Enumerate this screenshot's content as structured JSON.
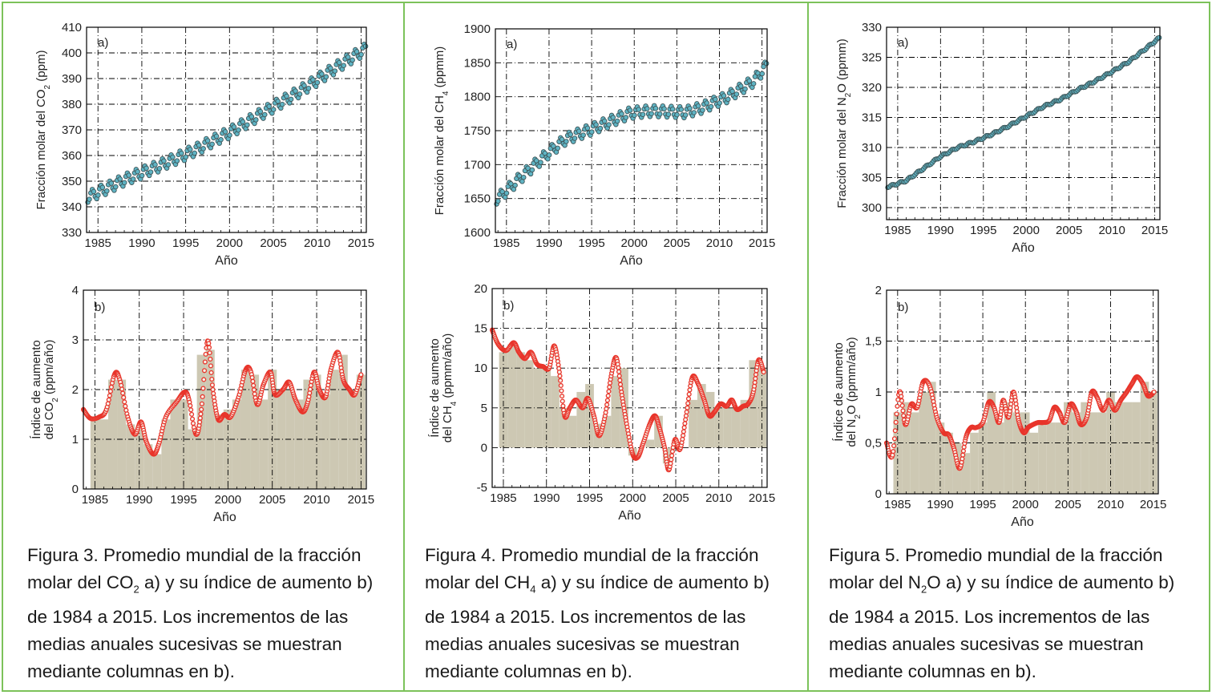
{
  "panels": [
    {
      "caption": {
        "prefix": "Figura 3. Promedio mundial de la fracción molar del CO",
        "sub": "2",
        "suffix": " a) y su índice de aumento b) de 1984 a 2015. Los incrementos de las medias anuales sucesivas se muestran mediante columnas en b)."
      },
      "chart_a": {
        "tag": "a)",
        "ylabel_pre": "Fracción molar del CO",
        "ylabel_sub": "2",
        "ylabel_post": " (ppm)",
        "xlabel": "Año"
      },
      "chart_b": {
        "tag": "b)",
        "ylabel1": "Índice de aumento",
        "ylabel2_pre": "del CO",
        "ylabel2_sub": "2",
        "ylabel2_post": " (ppm/año)",
        "xlabel": "Año"
      }
    },
    {
      "caption": {
        "prefix": "Figura 4. Promedio mundial de la fracción molar del CH",
        "sub": "4",
        "suffix": " a) y su índice de aumento b) de 1984 a 2015. Los incrementos de las medias anuales sucesivas se muestran mediante columnas en b)."
      },
      "chart_a": {
        "tag": "a)",
        "ylabel_pre": "Fracción molar del CH",
        "ylabel_sub": "4",
        "ylabel_post": " (ppmm)",
        "xlabel": "Año"
      },
      "chart_b": {
        "tag": "b)",
        "ylabel1": "Índice de aumento",
        "ylabel2_pre": "del CH",
        "ylabel2_sub": "4",
        "ylabel2_post": " (ppmm/año)",
        "xlabel": "Año"
      }
    },
    {
      "caption": {
        "prefix": "Figura 5. Promedio mundial de la fracción molar del N",
        "sub": "2",
        "suffix": "O a) y su índice de aumento b) de 1984 a 2015. Los incrementos de las medias anuales sucesivas se muestran mediante columnas en b)."
      },
      "chart_a": {
        "tag": "a)",
        "ylabel_pre": "Fracción molar del N",
        "ylabel_sub": "2",
        "ylabel_post": "O (ppmm)",
        "xlabel": "Año"
      },
      "chart_b": {
        "tag": "b)",
        "ylabel1": "Índice de aumento",
        "ylabel2_pre": "del N",
        "ylabel2_sub": "2",
        "ylabel2_post": "O (ppmm/año)",
        "xlabel": "Año"
      }
    }
  ],
  "colors": {
    "frame": "#7cc25a",
    "teal": "#5fb4c4",
    "red": "#e8352b",
    "bars": "#cdc8b3",
    "grid": "#000000"
  },
  "chart_data": [
    {
      "type": "scatter",
      "gas": "CO2",
      "xlim": [
        1983.7,
        2015.6
      ],
      "ylim": [
        330,
        410
      ],
      "xticks": [
        1985,
        1990,
        1995,
        2000,
        2005,
        2010,
        2015
      ],
      "xtick_labels": [
        "1985",
        "1990",
        "1995",
        "2000",
        "2005",
        "2010",
        "2015"
      ],
      "yticks": [
        330,
        340,
        350,
        360,
        370,
        380,
        390,
        400,
        410
      ],
      "ytick_labels": [
        "330",
        "340",
        "350",
        "360",
        "370",
        "380",
        "390",
        "400",
        "410"
      ],
      "trend_x": [
        1984,
        1988,
        1992,
        1996,
        2000,
        2004,
        2008,
        2012,
        2015.5
      ],
      "trend_y": [
        344,
        350.5,
        356,
        362,
        369,
        377,
        385,
        394,
        401.5
      ],
      "seasonal_amplitude": 2.2
    },
    {
      "type": "bar_line",
      "gas": "CO2",
      "xlim": [
        1983.7,
        2015.6
      ],
      "ylim": [
        0,
        4
      ],
      "xticks": [
        1985,
        1990,
        1995,
        2000,
        2005,
        2010,
        2015
      ],
      "xtick_labels": [
        "1985",
        "1990",
        "1995",
        "2000",
        "2005",
        "2010",
        "2015"
      ],
      "yticks": [
        0,
        1,
        2,
        3,
        4
      ],
      "ytick_labels": [
        "0",
        "1",
        "2",
        "3",
        "4"
      ],
      "bar_years": [
        1985,
        1986,
        1987,
        1988,
        1989,
        1990,
        1991,
        1992,
        1993,
        1994,
        1995,
        1996,
        1997,
        1998,
        1999,
        2000,
        2001,
        2002,
        2003,
        2004,
        2005,
        2006,
        2007,
        2008,
        2009,
        2010,
        2011,
        2012,
        2013,
        2014,
        2015
      ],
      "bar_values": [
        1.4,
        1.4,
        2.2,
        2.2,
        1.3,
        1.2,
        0.9,
        0.7,
        1.4,
        1.8,
        1.8,
        1.2,
        2.7,
        2.8,
        1.5,
        1.6,
        1.8,
        2.4,
        2.3,
        1.8,
        2.4,
        2.0,
        2.0,
        1.8,
        2.2,
        2.3,
        1.9,
        2.4,
        2.7,
        2.0,
        2.3
      ],
      "line_x": [
        1983.7,
        1984.5,
        1985.5,
        1986.3,
        1987.2,
        1987.8,
        1988.7,
        1989.5,
        1990.2,
        1990.8,
        1991.6,
        1992.2,
        1993.0,
        1994.2,
        1995.1,
        1995.6,
        1996.4,
        1997.0,
        1997.7,
        1998.3,
        1998.9,
        1999.6,
        2000.3,
        2001.2,
        2002.0,
        2002.6,
        2003.3,
        2004.0,
        2004.8,
        2005.3,
        2006.2,
        2006.9,
        2007.6,
        2008.4,
        2009.0,
        2009.7,
        2010.3,
        2011.0,
        2011.6,
        2012.4,
        2013.0,
        2013.7,
        2014.3,
        2015.0
      ],
      "line_y": [
        1.6,
        1.42,
        1.45,
        1.6,
        2.3,
        2.2,
        1.45,
        1.1,
        1.35,
        0.95,
        0.7,
        0.9,
        1.45,
        1.75,
        1.95,
        1.8,
        1.1,
        1.6,
        2.98,
        2.0,
        1.4,
        1.5,
        1.45,
        1.85,
        2.4,
        2.35,
        1.7,
        2.1,
        2.35,
        1.9,
        2.0,
        2.15,
        1.8,
        1.55,
        1.75,
        2.35,
        2.0,
        1.85,
        2.4,
        2.75,
        2.2,
        2.0,
        1.9,
        2.3
      ]
    },
    {
      "type": "scatter",
      "gas": "CH4",
      "xlim": [
        1983.7,
        2015.6
      ],
      "ylim": [
        1600,
        1900
      ],
      "xticks": [
        1985,
        1990,
        1995,
        2000,
        2005,
        2010,
        2015
      ],
      "xtick_labels": [
        "1985",
        "1990",
        "1995",
        "2000",
        "2005",
        "2010",
        "2015"
      ],
      "yticks": [
        1600,
        1650,
        1700,
        1750,
        1800,
        1850,
        1900
      ],
      "ytick_labels": [
        "1600",
        "1650",
        "1700",
        "1750",
        "1800",
        "1850",
        "1900"
      ],
      "trend_x": [
        1984,
        1987,
        1990,
        1992,
        1995,
        1998,
        1999.5,
        2002,
        2006,
        2008,
        2011,
        2014,
        2015.5
      ],
      "trend_y": [
        1650,
        1685,
        1718,
        1738,
        1752,
        1768,
        1776,
        1779,
        1777,
        1784,
        1800,
        1823,
        1845
      ],
      "seasonal_amplitude": 8
    },
    {
      "type": "bar_line",
      "gas": "CH4",
      "xlim": [
        1983.7,
        2015.6
      ],
      "ylim": [
        -5,
        20
      ],
      "xticks": [
        1985,
        1990,
        1995,
        2000,
        2005,
        2010,
        2015
      ],
      "xtick_labels": [
        "1985",
        "1990",
        "1995",
        "2000",
        "2005",
        "2010",
        "2015"
      ],
      "yticks": [
        -5,
        0,
        5,
        10,
        15,
        20
      ],
      "ytick_labels": [
        "-5",
        "0",
        "5",
        "10",
        "15",
        "20"
      ],
      "bar_years": [
        1985,
        1986,
        1987,
        1988,
        1989,
        1990,
        1991,
        1992,
        1993,
        1994,
        1995,
        1996,
        1997,
        1998,
        1999,
        2000,
        2001,
        2002,
        2003,
        2004,
        2005,
        2006,
        2007,
        2008,
        2009,
        2010,
        2011,
        2012,
        2013,
        2014,
        2015
      ],
      "bar_values": [
        12,
        13,
        12,
        11,
        10,
        10,
        9,
        5,
        4,
        7,
        8,
        3,
        4,
        9,
        10,
        -1,
        0,
        1,
        4,
        -2,
        0,
        0,
        6,
        8,
        7,
        5,
        5,
        5,
        6,
        11,
        10
      ],
      "line_x": [
        1983.7,
        1984.4,
        1985.3,
        1986.2,
        1986.8,
        1987.5,
        1988.2,
        1988.9,
        1989.6,
        1990.3,
        1990.9,
        1991.5,
        1992.1,
        1992.7,
        1993.4,
        1994.2,
        1994.8,
        1995.5,
        1996.1,
        1996.8,
        1997.5,
        1998.1,
        1998.7,
        1999.3,
        2000.0,
        2000.6,
        2001.2,
        2002.0,
        2002.6,
        2003.1,
        2003.7,
        2004.2,
        2004.9,
        2005.5,
        2006.2,
        2006.9,
        2007.6,
        2008.3,
        2008.9,
        2009.5,
        2010.2,
        2010.9,
        2011.5,
        2012.1,
        2012.8,
        2013.4,
        2014.0,
        2014.6,
        2015.2
      ],
      "line_y": [
        14.8,
        13.0,
        12.2,
        13.2,
        12.0,
        11.2,
        12.0,
        10.5,
        10.2,
        10.0,
        12.8,
        9.5,
        4.0,
        5.0,
        6.0,
        5.0,
        6.2,
        4.0,
        1.5,
        4.0,
        9.0,
        11.3,
        7.0,
        3.0,
        -0.8,
        -1.2,
        0.5,
        3.0,
        4.0,
        2.5,
        0.0,
        -2.8,
        1.0,
        -0.2,
        4.0,
        8.8,
        8.0,
        6.0,
        4.0,
        4.5,
        5.5,
        5.2,
        6.0,
        4.8,
        5.2,
        5.5,
        7.0,
        11.0,
        9.5
      ]
    },
    {
      "type": "scatter",
      "gas": "N2O",
      "xlim": [
        1983.7,
        2015.6
      ],
      "ylim": [
        298,
        330
      ],
      "xticks": [
        1985,
        1990,
        1995,
        2000,
        2005,
        2010,
        2015
      ],
      "xtick_labels": [
        "1985",
        "1990",
        "1995",
        "2000",
        "2005",
        "2010",
        "2015"
      ],
      "yticks": [
        300,
        305,
        310,
        315,
        320,
        325,
        330
      ],
      "ytick_labels": [
        "300",
        "305",
        "310",
        "315",
        "320",
        "325",
        "330"
      ],
      "trend_x": [
        1984,
        1986,
        1988,
        1990,
        1992,
        1994,
        1996,
        1998,
        2000,
        2002,
        2004,
        2006,
        2008,
        2010,
        2012,
        2014,
        2015.5
      ],
      "trend_y": [
        303.5,
        304.5,
        306.5,
        308.5,
        310.0,
        311.0,
        312.2,
        313.6,
        315.2,
        316.8,
        318.0,
        319.6,
        321.0,
        322.6,
        324.3,
        326.5,
        328.2
      ],
      "seasonal_amplitude": 0.15
    },
    {
      "type": "bar_line",
      "gas": "N2O",
      "xlim": [
        1983.7,
        2015.6
      ],
      "ylim": [
        0,
        2
      ],
      "xticks": [
        1985,
        1990,
        1995,
        2000,
        2005,
        2010,
        2015
      ],
      "xtick_labels": [
        "1985",
        "1990",
        "1995",
        "2000",
        "2005",
        "2010",
        "2015"
      ],
      "yticks": [
        0,
        0.5,
        1,
        1.5,
        2
      ],
      "ytick_labels": [
        "0",
        "0,5",
        "1",
        "1,5",
        "2"
      ],
      "bar_years": [
        1985,
        1986,
        1987,
        1988,
        1989,
        1990,
        1991,
        1992,
        1993,
        1994,
        1995,
        1996,
        1997,
        1998,
        1999,
        2000,
        2001,
        2002,
        2003,
        2004,
        2005,
        2006,
        2007,
        2008,
        2009,
        2010,
        2011,
        2012,
        2013,
        2014,
        2015
      ],
      "bar_values": [
        0.8,
        0.9,
        0.8,
        1.0,
        1.1,
        0.7,
        0.6,
        0.5,
        0.4,
        0.6,
        0.7,
        1.0,
        0.7,
        0.9,
        0.8,
        0.8,
        0.6,
        0.7,
        0.7,
        0.7,
        0.9,
        0.8,
        0.9,
        0.8,
        0.8,
        1.0,
        0.9,
        0.9,
        0.9,
        1.1,
        1.0
      ],
      "line_x": [
        1983.7,
        1984.4,
        1985.2,
        1985.9,
        1986.6,
        1987.3,
        1988.0,
        1988.8,
        1989.6,
        1990.4,
        1991.0,
        1991.6,
        1992.3,
        1993.0,
        1993.6,
        1994.2,
        1995.0,
        1995.7,
        1996.3,
        1996.9,
        1997.4,
        1998.0,
        1998.6,
        1999.2,
        1999.8,
        2000.3,
        2000.9,
        2001.5,
        2002.1,
        2002.8,
        2003.4,
        2004.0,
        2004.6,
        2005.3,
        2005.9,
        2006.5,
        2007.2,
        2007.8,
        2008.4,
        2009.1,
        2009.8,
        2010.5,
        2011.2,
        2011.9,
        2012.5,
        2013.1,
        2013.8,
        2014.4,
        2015.1
      ],
      "line_y": [
        0.5,
        0.38,
        1.0,
        0.68,
        0.88,
        0.85,
        1.1,
        1.05,
        0.75,
        0.6,
        0.58,
        0.45,
        0.25,
        0.55,
        0.65,
        0.65,
        0.7,
        0.9,
        0.85,
        0.7,
        0.92,
        0.75,
        1.0,
        0.72,
        0.6,
        0.65,
        0.68,
        0.7,
        0.7,
        0.72,
        0.85,
        0.8,
        0.7,
        0.88,
        0.82,
        0.68,
        0.75,
        1.0,
        0.95,
        0.82,
        0.92,
        0.82,
        0.92,
        1.0,
        1.08,
        1.15,
        1.08,
        0.96,
        1.0
      ]
    }
  ]
}
